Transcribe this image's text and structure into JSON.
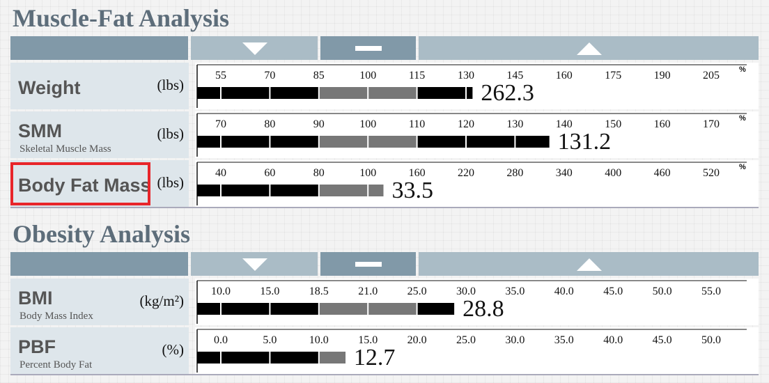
{
  "sections": [
    {
      "title": "Muscle-Fat Analysis",
      "rows": [
        {
          "name": "Weight",
          "unit": "(lbs)",
          "value": 262.3,
          "percent": 132,
          "scale_unit": "%",
          "ticks": [
            55,
            70,
            85,
            100,
            115,
            130,
            145,
            160,
            175,
            190,
            205
          ]
        },
        {
          "name": "SMM",
          "subtitle": "Skeletal Muscle Mass",
          "unit": "(lbs)",
          "value": 131.2,
          "percent": 137,
          "scale_unit": "%",
          "ticks": [
            70,
            80,
            90,
            100,
            110,
            120,
            130,
            140,
            150,
            160,
            170
          ]
        },
        {
          "name": "Body Fat Mass",
          "unit": "(lbs)",
          "value": 33.5,
          "percent": 119,
          "scale_unit": "%",
          "ticks": [
            40,
            60,
            80,
            100,
            160,
            220,
            280,
            340,
            400,
            460,
            520
          ]
        }
      ]
    },
    {
      "title": "Obesity Analysis",
      "rows": [
        {
          "name": "BMI",
          "subtitle": "Body Mass Index",
          "unit": "(kg/m²)",
          "value": 28.8,
          "ticks": [
            {
              "value": 10,
              "label": "10.0"
            },
            {
              "value": 15,
              "label": "15.0"
            },
            {
              "value": 18.5,
              "label": "18.5"
            },
            {
              "value": 21,
              "label": "21.0"
            },
            {
              "value": 25,
              "label": "25.0"
            },
            {
              "value": 30,
              "label": "30.0"
            },
            {
              "value": 35,
              "label": "35.0"
            },
            {
              "value": 40,
              "label": "40.0"
            },
            {
              "value": 45,
              "label": "45.0"
            },
            {
              "value": 50,
              "label": "50.0"
            },
            {
              "value": 55,
              "label": "55.0"
            }
          ]
        },
        {
          "name": "PBF",
          "subtitle": "Percent Body Fat",
          "unit": "(%)",
          "value": 12.7,
          "ticks": [
            {
              "value": 0,
              "label": "0.0"
            },
            {
              "value": 5,
              "label": "5.0"
            },
            {
              "value": 10,
              "label": "10.0"
            },
            {
              "value": 15,
              "label": "15.0"
            },
            {
              "value": 20,
              "label": "20.0"
            },
            {
              "value": 25,
              "label": "25.0"
            },
            {
              "value": 30,
              "label": "30.0"
            },
            {
              "value": 35,
              "label": "35.0"
            },
            {
              "value": 40,
              "label": "40.0"
            },
            {
              "value": 45,
              "label": "45.0"
            },
            {
              "value": 50,
              "label": "50.0"
            }
          ]
        }
      ]
    }
  ]
}
